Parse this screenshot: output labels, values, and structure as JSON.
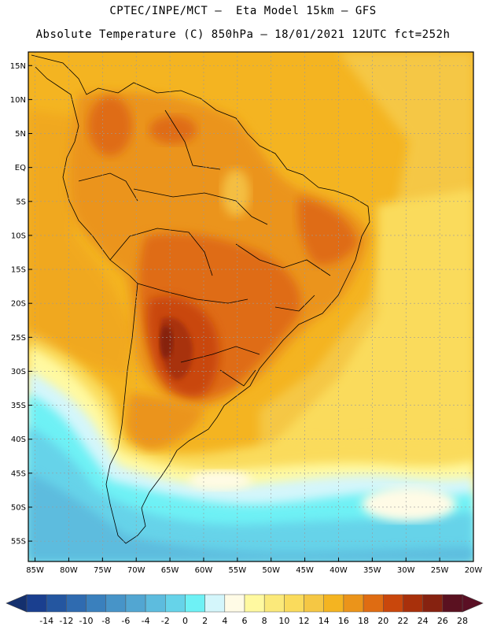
{
  "header": {
    "line1": "CPTEC/INPE/MCT –  Eta Model 15km – GFS",
    "line2": "Absolute Temperature (C) 850hPa – 18/01/2021 12UTC fct=252h"
  },
  "map": {
    "lon_range": [
      -86,
      -20
    ],
    "lat_range": [
      -58,
      17
    ],
    "lon_ticks": [
      "85W",
      "80W",
      "75W",
      "70W",
      "65W",
      "60W",
      "55W",
      "50W",
      "45W",
      "40W",
      "35W",
      "30W",
      "25W",
      "20W"
    ],
    "lat_ticks": [
      "15N",
      "10N",
      "5N",
      "EQ",
      "5S",
      "10S",
      "15S",
      "20S",
      "25S",
      "30S",
      "35S",
      "40S",
      "45S",
      "50S",
      "55S"
    ]
  },
  "colorbar": {
    "labels": [
      "-14",
      "-12",
      "-10",
      "-8",
      "-6",
      "-4",
      "-2",
      "0",
      "2",
      "4",
      "6",
      "8",
      "10",
      "12",
      "14",
      "16",
      "18",
      "20",
      "22",
      "24",
      "26",
      "28"
    ],
    "colors": [
      "#1a3f8f",
      "#2456a0",
      "#2f6bb0",
      "#3a80bd",
      "#4794c8",
      "#52a6d2",
      "#5dbcde",
      "#66d3e9",
      "#6ef1f5",
      "#d4f6fb",
      "#fffbe6",
      "#fff9a0",
      "#fbe97a",
      "#fadb5c",
      "#f5c744",
      "#f4b421",
      "#eb941a",
      "#df6c12",
      "#c9470c",
      "#a8300b",
      "#862210",
      "#5a1120"
    ],
    "under_color": "#14306e",
    "over_color": "#5a0f24"
  }
}
